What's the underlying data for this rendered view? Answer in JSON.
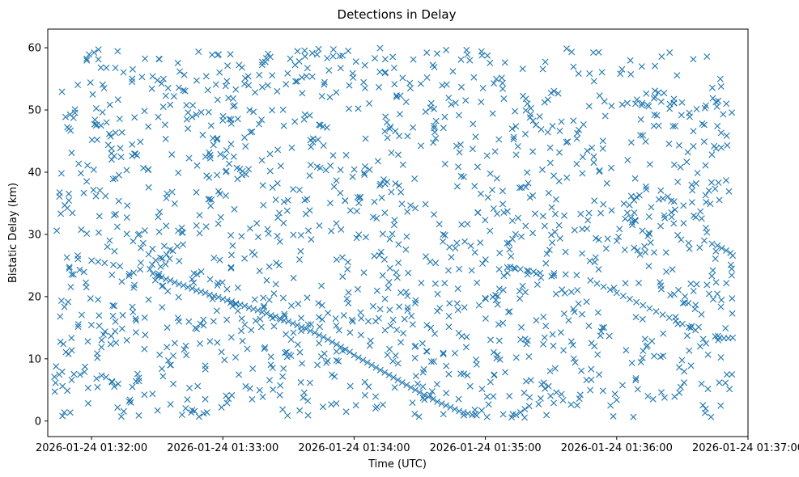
{
  "chart_data": {
    "type": "scatter",
    "title": "Detections in Delay",
    "xlabel": "Time (UTC)",
    "ylabel": "Bistatic Delay (km)",
    "marker": "x",
    "color": "#1f77b4",
    "x_unit": "seconds since 2026-01-24 01:32:00",
    "xlim": [
      -20,
      300
    ],
    "ylim": [
      -2.5,
      63
    ],
    "x_ticks": [
      0,
      60,
      120,
      180,
      240,
      300
    ],
    "x_tick_labels": [
      "2026-01-24 01:32:00",
      "2026-01-24 01:33:00",
      "2026-01-24 01:34:00",
      "2026-01-24 01:35:00",
      "2026-01-24 01:36:00",
      "2026-01-24 01:37:00"
    ],
    "y_ticks": [
      0,
      10,
      20,
      30,
      40,
      50,
      60
    ],
    "y_tick_labels": [
      "0",
      "10",
      "20",
      "30",
      "40",
      "50",
      "60"
    ],
    "time_span": [
      -17,
      293
    ],
    "delay_span": [
      0.5,
      60
    ],
    "noise_count": 1500,
    "track_points": [
      {
        "x": 0,
        "y": 25.8
      },
      {
        "x": 3,
        "y": 25.6
      },
      {
        "x": 6,
        "y": 25.4
      },
      {
        "x": 10,
        "y": 25.1
      },
      {
        "x": 13,
        "y": 24.9
      },
      {
        "x": 28,
        "y": 23.7
      },
      {
        "x": 30,
        "y": 23.4
      },
      {
        "x": 32,
        "y": 23.1
      },
      {
        "x": 34,
        "y": 22.8
      },
      {
        "x": 36,
        "y": 22.6
      },
      {
        "x": 38,
        "y": 22.3
      },
      {
        "x": 40,
        "y": 22.0
      },
      {
        "x": 42,
        "y": 21.8
      },
      {
        "x": 44,
        "y": 21.5
      },
      {
        "x": 46,
        "y": 21.3
      },
      {
        "x": 48,
        "y": 21.0
      },
      {
        "x": 50,
        "y": 20.8
      },
      {
        "x": 52,
        "y": 20.6
      },
      {
        "x": 54,
        "y": 20.3
      },
      {
        "x": 56,
        "y": 20.1
      },
      {
        "x": 58,
        "y": 19.9
      },
      {
        "x": 60,
        "y": 19.6
      },
      {
        "x": 62,
        "y": 19.4
      },
      {
        "x": 64,
        "y": 19.2
      },
      {
        "x": 66,
        "y": 18.9
      },
      {
        "x": 68,
        "y": 18.7
      },
      {
        "x": 70,
        "y": 18.5
      },
      {
        "x": 72,
        "y": 18.2
      },
      {
        "x": 74,
        "y": 18.0
      },
      {
        "x": 76,
        "y": 17.8
      },
      {
        "x": 78,
        "y": 17.5
      },
      {
        "x": 80,
        "y": 17.3
      },
      {
        "x": 82,
        "y": 17.0
      },
      {
        "x": 84,
        "y": 16.8
      },
      {
        "x": 86,
        "y": 16.5
      },
      {
        "x": 88,
        "y": 16.2
      },
      {
        "x": 90,
        "y": 16.0
      },
      {
        "x": 92,
        "y": 15.7
      },
      {
        "x": 94,
        "y": 15.4
      },
      {
        "x": 96,
        "y": 15.1
      },
      {
        "x": 98,
        "y": 14.8
      },
      {
        "x": 100,
        "y": 14.5
      },
      {
        "x": 102,
        "y": 14.2
      },
      {
        "x": 104,
        "y": 13.8
      },
      {
        "x": 106,
        "y": 13.5
      },
      {
        "x": 108,
        "y": 13.1
      },
      {
        "x": 110,
        "y": 12.7
      },
      {
        "x": 112,
        "y": 12.3
      },
      {
        "x": 114,
        "y": 11.9
      },
      {
        "x": 116,
        "y": 11.5
      },
      {
        "x": 118,
        "y": 11.1
      },
      {
        "x": 120,
        "y": 10.6
      },
      {
        "x": 122,
        "y": 10.2
      },
      {
        "x": 124,
        "y": 9.8
      },
      {
        "x": 126,
        "y": 9.4
      },
      {
        "x": 128,
        "y": 9.0
      },
      {
        "x": 130,
        "y": 8.6
      },
      {
        "x": 132,
        "y": 8.2
      },
      {
        "x": 134,
        "y": 7.8
      },
      {
        "x": 136,
        "y": 7.4
      },
      {
        "x": 138,
        "y": 7.0
      },
      {
        "x": 140,
        "y": 6.6
      },
      {
        "x": 142,
        "y": 6.2
      },
      {
        "x": 144,
        "y": 5.8
      },
      {
        "x": 146,
        "y": 5.4
      },
      {
        "x": 148,
        "y": 5.0
      },
      {
        "x": 150,
        "y": 4.6
      },
      {
        "x": 152,
        "y": 4.2
      },
      {
        "x": 154,
        "y": 3.9
      },
      {
        "x": 156,
        "y": 3.5
      },
      {
        "x": 158,
        "y": 3.1
      },
      {
        "x": 160,
        "y": 2.8
      },
      {
        "x": 162,
        "y": 2.5
      },
      {
        "x": 164,
        "y": 2.2
      },
      {
        "x": 166,
        "y": 1.9
      },
      {
        "x": 168,
        "y": 1.6
      },
      {
        "x": 170,
        "y": 1.4
      },
      {
        "x": 172,
        "y": 1.2
      },
      {
        "x": 174,
        "y": 1.0
      },
      {
        "x": 176,
        "y": 0.9
      },
      {
        "x": 190,
        "y": 24.7
      },
      {
        "x": 193,
        "y": 24.6
      },
      {
        "x": 196,
        "y": 24.4
      },
      {
        "x": 199,
        "y": 24.2
      },
      {
        "x": 202,
        "y": 24.0
      },
      {
        "x": 205,
        "y": 23.8
      },
      {
        "x": 228,
        "y": 22.6
      },
      {
        "x": 231,
        "y": 22.1
      },
      {
        "x": 234,
        "y": 21.6
      },
      {
        "x": 237,
        "y": 21.1
      },
      {
        "x": 240,
        "y": 20.6
      },
      {
        "x": 243,
        "y": 20.1
      },
      {
        "x": 246,
        "y": 19.6
      },
      {
        "x": 249,
        "y": 19.1
      },
      {
        "x": 252,
        "y": 18.6
      },
      {
        "x": 255,
        "y": 18.1
      },
      {
        "x": 258,
        "y": 17.6
      },
      {
        "x": 261,
        "y": 17.1
      },
      {
        "x": 264,
        "y": 16.6
      },
      {
        "x": 267,
        "y": 16.1
      },
      {
        "x": 270,
        "y": 15.6
      },
      {
        "x": 273,
        "y": 15.1
      },
      {
        "x": 276,
        "y": 14.6
      },
      {
        "x": 192,
        "y": 0.6
      },
      {
        "x": 194,
        "y": 1.0
      },
      {
        "x": 196,
        "y": 1.4
      },
      {
        "x": 198,
        "y": 1.9
      },
      {
        "x": 200,
        "y": 2.4
      },
      {
        "x": 286,
        "y": 28.2
      },
      {
        "x": 288,
        "y": 27.8
      },
      {
        "x": 290,
        "y": 27.4
      },
      {
        "x": 292,
        "y": 27.0
      },
      {
        "x": 293,
        "y": 26.6
      },
      {
        "x": 285,
        "y": 13.6
      },
      {
        "x": 287,
        "y": 13.4
      },
      {
        "x": 289,
        "y": 13.3
      },
      {
        "x": 291,
        "y": 13.3
      },
      {
        "x": 293,
        "y": 13.4
      }
    ]
  }
}
